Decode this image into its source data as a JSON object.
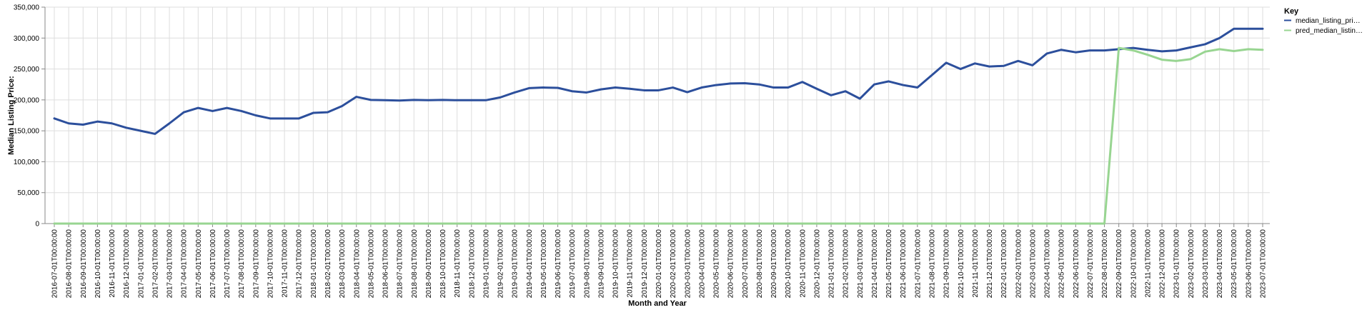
{
  "chart_data": {
    "type": "line",
    "xlabel": "Month and Year",
    "ylabel": "Median Listing Price:",
    "ylim": [
      0,
      350000
    ],
    "yticks": [
      "0",
      "50,000",
      "100,000",
      "150,000",
      "200,000",
      "250,000",
      "300,000",
      "350,000"
    ],
    "grid": true,
    "legend": {
      "title": "Key",
      "placement": "top-right"
    },
    "categories": [
      "2016-07-01T00:00:00",
      "2016-08-01T00:00:00",
      "2016-09-01T00:00:00",
      "2016-10-01T00:00:00",
      "2016-11-01T00:00:00",
      "2016-12-01T00:00:00",
      "2017-01-01T00:00:00",
      "2017-02-01T00:00:00",
      "2017-03-01T00:00:00",
      "2017-04-01T00:00:00",
      "2017-05-01T00:00:00",
      "2017-06-01T00:00:00",
      "2017-07-01T00:00:00",
      "2017-08-01T00:00:00",
      "2017-09-01T00:00:00",
      "2017-10-01T00:00:00",
      "2017-11-01T00:00:00",
      "2017-12-01T00:00:00",
      "2018-01-01T00:00:00",
      "2018-02-01T00:00:00",
      "2018-03-01T00:00:00",
      "2018-04-01T00:00:00",
      "2018-05-01T00:00:00",
      "2018-06-01T00:00:00",
      "2018-07-01T00:00:00",
      "2018-08-01T00:00:00",
      "2018-09-01T00:00:00",
      "2018-10-01T00:00:00",
      "2018-11-01T00:00:00",
      "2018-12-01T00:00:00",
      "2019-01-01T00:00:00",
      "2019-02-01T00:00:00",
      "2019-03-01T00:00:00",
      "2019-04-01T00:00:00",
      "2019-05-01T00:00:00",
      "2019-06-01T00:00:00",
      "2019-07-01T00:00:00",
      "2019-08-01T00:00:00",
      "2019-09-01T00:00:00",
      "2019-10-01T00:00:00",
      "2019-11-01T00:00:00",
      "2019-12-01T00:00:00",
      "2020-01-01T00:00:00",
      "2020-02-01T00:00:00",
      "2020-03-01T00:00:00",
      "2020-04-01T00:00:00",
      "2020-05-01T00:00:00",
      "2020-06-01T00:00:00",
      "2020-07-01T00:00:00",
      "2020-08-01T00:00:00",
      "2020-09-01T00:00:00",
      "2020-10-01T00:00:00",
      "2020-11-01T00:00:00",
      "2020-12-01T00:00:00",
      "2021-01-01T00:00:00",
      "2021-02-01T00:00:00",
      "2021-03-01T00:00:00",
      "2021-04-01T00:00:00",
      "2021-05-01T00:00:00",
      "2021-06-01T00:00:00",
      "2021-07-01T00:00:00",
      "2021-08-01T00:00:00",
      "2021-09-01T00:00:00",
      "2021-10-01T00:00:00",
      "2021-11-01T00:00:00",
      "2021-12-01T00:00:00",
      "2022-01-01T00:00:00",
      "2022-02-01T00:00:00",
      "2022-03-01T00:00:00",
      "2022-04-01T00:00:00",
      "2022-05-01T00:00:00",
      "2022-06-01T00:00:00",
      "2022-07-01T00:00:00",
      "2022-08-01T00:00:00",
      "2022-09-01T00:00:00",
      "2022-10-01T00:00:00",
      "2022-11-01T00:00:00",
      "2022-12-01T00:00:00",
      "2023-01-01T00:00:00",
      "2023-02-01T00:00:00",
      "2023-03-01T00:00:00",
      "2023-04-01T00:00:00",
      "2023-05-01T00:00:00",
      "2023-06-01T00:00:00",
      "2023-07-01T00:00:00"
    ],
    "series": [
      {
        "name": "median_listing_pri…",
        "color": "#2c4f9c",
        "values": [
          170000,
          162000,
          160000,
          165000,
          162000,
          155000,
          150000,
          145000,
          162000,
          180000,
          187000,
          182000,
          187000,
          182000,
          175000,
          170000,
          170000,
          170000,
          179000,
          180000,
          190000,
          205000,
          200000,
          199500,
          199000,
          200000,
          199500,
          200000,
          199500,
          199500,
          199500,
          204000,
          212000,
          219000,
          220000,
          219500,
          214000,
          212000,
          217000,
          220000,
          218000,
          215500,
          215500,
          220000,
          212500,
          220000,
          224000,
          226500,
          227000,
          225000,
          220000,
          220000,
          229000,
          218000,
          207500,
          214000,
          202000,
          225000,
          230000,
          224000,
          220000,
          240000,
          260000,
          250000,
          259000,
          254000,
          255000,
          263000,
          256000,
          275000,
          281000,
          277000,
          280000,
          280000,
          282000,
          284000,
          281000,
          278500,
          280000,
          285000,
          290000,
          300000,
          315000,
          315000,
          315000
        ]
      },
      {
        "name": "pred_median_listin…",
        "color": "#98d591",
        "values": [
          0,
          0,
          0,
          0,
          0,
          0,
          0,
          0,
          0,
          0,
          0,
          0,
          0,
          0,
          0,
          0,
          0,
          0,
          0,
          0,
          0,
          0,
          0,
          0,
          0,
          0,
          0,
          0,
          0,
          0,
          0,
          0,
          0,
          0,
          0,
          0,
          0,
          0,
          0,
          0,
          0,
          0,
          0,
          0,
          0,
          0,
          0,
          0,
          0,
          0,
          0,
          0,
          0,
          0,
          0,
          0,
          0,
          0,
          0,
          0,
          0,
          0,
          0,
          0,
          0,
          0,
          0,
          0,
          0,
          0,
          0,
          0,
          0,
          0,
          284000,
          280000,
          273000,
          265000,
          263000,
          266000,
          278000,
          282000,
          279000,
          282000,
          281000
        ]
      }
    ]
  }
}
